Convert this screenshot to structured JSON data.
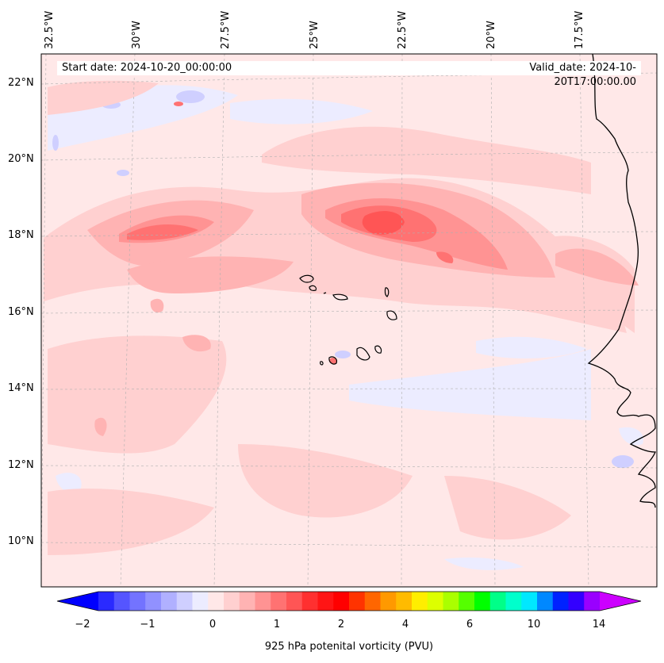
{
  "map": {
    "longitude_labels": [
      "32.5°W",
      "30°W",
      "27.5°W",
      "25°W",
      "22.5°W",
      "20°W",
      "17.5°W"
    ],
    "latitude_labels": [
      "22°N",
      "20°N",
      "18°N",
      "16°N",
      "14°N",
      "12°N",
      "10°N"
    ],
    "start_date_text": "Start date: 2024-10-20_00:00:00",
    "valid_date_text": "Valid_date: 2024-10-20T17:00:00.00",
    "background_color": "#ffe8e8",
    "coastline_color": "#000000"
  },
  "colorbar": {
    "title": "925 hPa potenital vorticity (PVU)",
    "tick_labels": [
      "−2",
      "−1",
      "0",
      "1",
      "2",
      "4",
      "6",
      "10",
      "14"
    ],
    "colors": [
      "#0000ff",
      "#2a2aff",
      "#5555ff",
      "#7373ff",
      "#9191ff",
      "#b0b0ff",
      "#cfcfff",
      "#ececff",
      "#ffe8e8",
      "#ffd0d0",
      "#ffb3b3",
      "#ff9393",
      "#ff7272",
      "#ff5555",
      "#ff3030",
      "#ff1515",
      "#ff0000",
      "#ff3300",
      "#ff6600",
      "#ff9900",
      "#ffbb00",
      "#ffee00",
      "#ddff00",
      "#aaff00",
      "#55ff00",
      "#00ff00",
      "#00ff88",
      "#00ffcc",
      "#00e8ff",
      "#0088ff",
      "#0022ff",
      "#3300ff",
      "#9900ff",
      "#cc00ff"
    ]
  }
}
